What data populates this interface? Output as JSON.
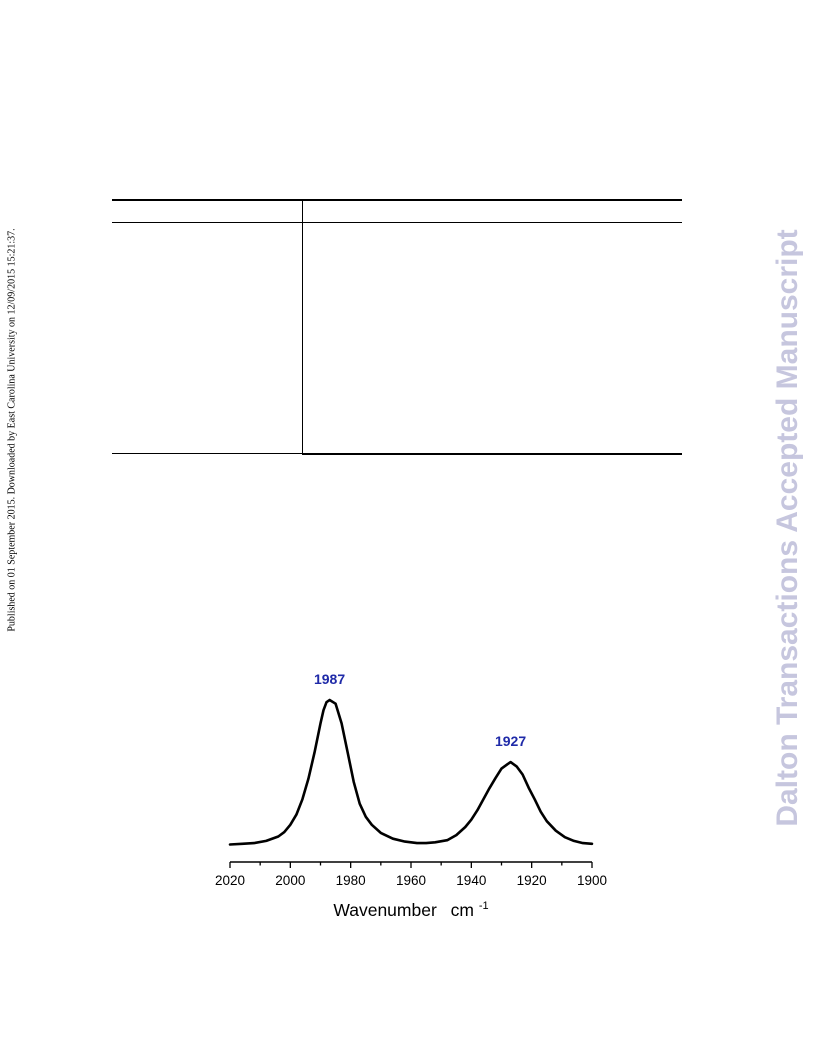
{
  "margin_note": "Published on 01 September 2015. Downloaded by East Carolina University on 12/09/2015 15:21:37.",
  "watermark": "Dalton Transactions Accepted Manuscript",
  "colors": {
    "watermark": "#c6c6de",
    "peak_label": "#1f2aa8",
    "curve": "#000000"
  },
  "chart_data": {
    "type": "line",
    "title": "",
    "xlabel": "Wavenumber",
    "xlabel_unit_base": "cm",
    "xlabel_unit_exp": "-1",
    "ylabel": "",
    "xlim": [
      2020,
      1900
    ],
    "x_reversed": true,
    "xticks": [
      "2020",
      "2000",
      "1980",
      "1960",
      "1940",
      "1920",
      "1900"
    ],
    "y_axis_visible": false,
    "ylim": [
      0,
      1
    ],
    "series": [
      {
        "x": [
          2020,
          2016,
          2012,
          2008,
          2004,
          2002,
          2000,
          1998,
          1996,
          1994,
          1992,
          1990,
          1989,
          1988,
          1987,
          1985,
          1983,
          1981,
          1979,
          1977,
          1975,
          1973,
          1970,
          1966,
          1962,
          1958,
          1955,
          1952,
          1948,
          1945,
          1942,
          1940,
          1938,
          1936,
          1934,
          1932,
          1930,
          1928,
          1927,
          1925,
          1923,
          1921,
          1919,
          1917,
          1915,
          1912,
          1909,
          1906,
          1903,
          1900
        ],
        "y": [
          0.01,
          0.015,
          0.02,
          0.035,
          0.065,
          0.095,
          0.145,
          0.215,
          0.32,
          0.46,
          0.64,
          0.84,
          0.93,
          0.985,
          1.0,
          0.975,
          0.84,
          0.64,
          0.44,
          0.29,
          0.2,
          0.145,
          0.09,
          0.05,
          0.03,
          0.02,
          0.02,
          0.025,
          0.04,
          0.075,
          0.13,
          0.18,
          0.245,
          0.32,
          0.395,
          0.465,
          0.53,
          0.56,
          0.575,
          0.545,
          0.49,
          0.4,
          0.32,
          0.235,
          0.17,
          0.105,
          0.06,
          0.035,
          0.02,
          0.015
        ]
      }
    ],
    "peak_labels": [
      {
        "x": 1987,
        "y": 1.0,
        "text": "1987"
      },
      {
        "x": 1927,
        "y": 0.575,
        "text": "1927"
      }
    ]
  }
}
